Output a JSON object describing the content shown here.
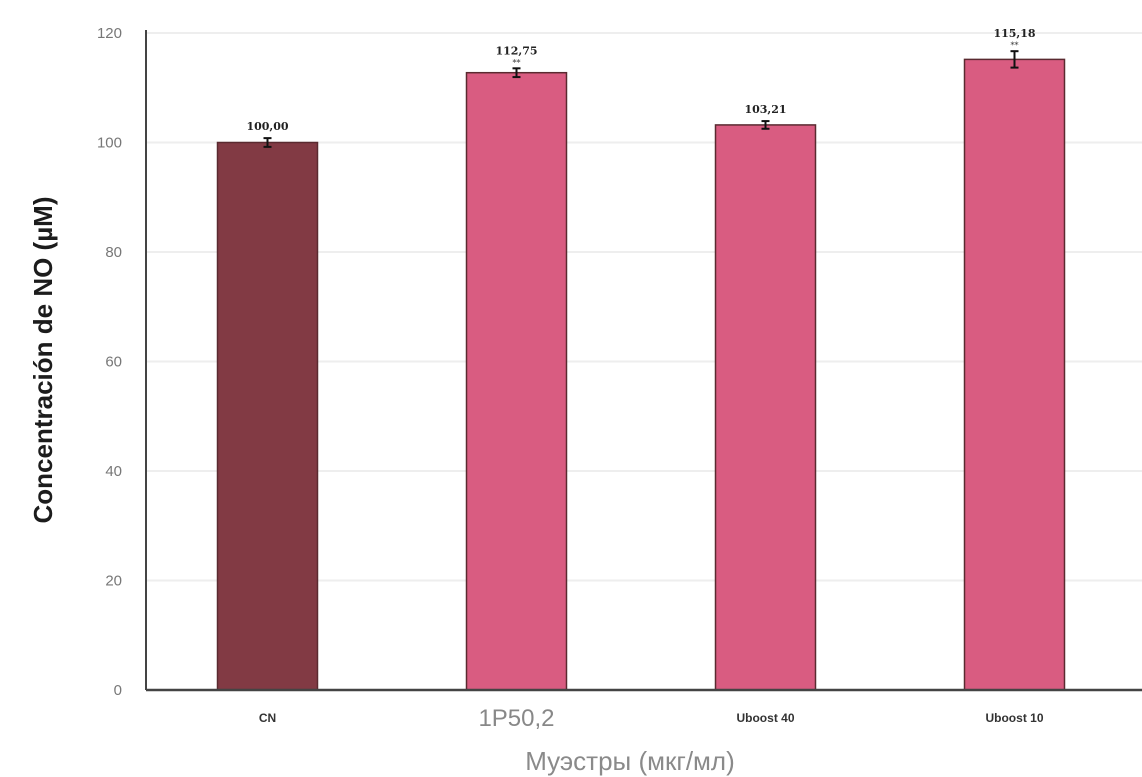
{
  "chart_data": {
    "type": "bar",
    "categories": [
      "CN",
      "1P50,2",
      "Uboost 40",
      "Uboost 10"
    ],
    "values": [
      100.0,
      112.75,
      103.21,
      115.18
    ],
    "value_labels": [
      "100,00",
      "112,75",
      "103,21",
      "115,18"
    ],
    "error": [
      0.8,
      0.8,
      0.7,
      1.5
    ],
    "sig_labels": [
      "",
      "**",
      "",
      "**"
    ],
    "bar_colors": [
      "#823a44",
      "#d95c81",
      "#d95c81",
      "#d95c81"
    ],
    "xlabel": "Муэстры (мкг/мл)",
    "ylabel": "Concentración de NO (µM)",
    "ylim": [
      0,
      120
    ],
    "yticks": [
      0,
      20,
      40,
      60,
      80,
      100,
      120
    ],
    "grid": true
  }
}
